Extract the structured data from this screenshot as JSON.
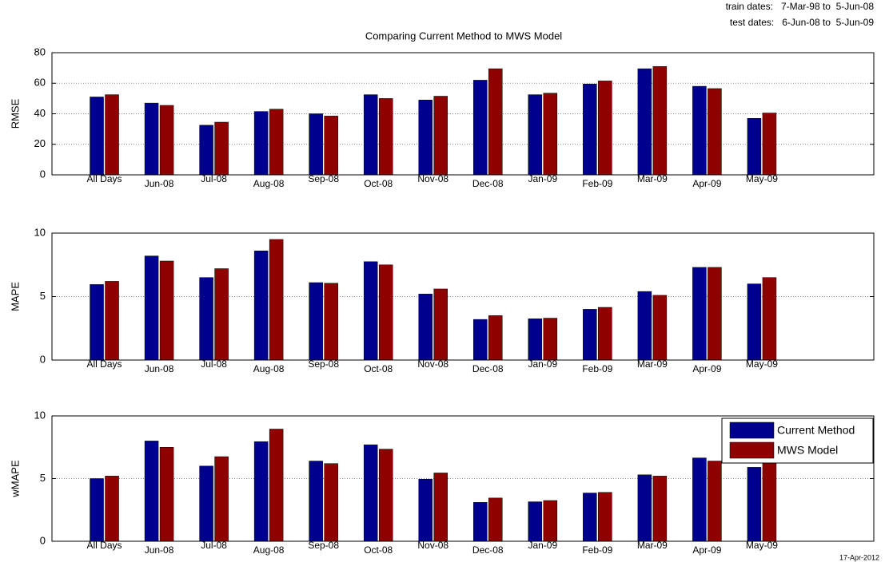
{
  "header": {
    "train_dates": "train dates:   7-Mar-98 to  5-Jun-08",
    "test_dates": "test dates:   6-Jun-08 to  5-Jun-09"
  },
  "footer": {
    "date": "17-Apr-2012"
  },
  "chart_data": [
    {
      "type": "bar",
      "title": "Comparing Current Method to MWS Model",
      "ylabel": "RMSE",
      "categories": [
        "All Days",
        "Jun-08",
        "Jul-08",
        "Aug-08",
        "Sep-08",
        "Oct-08",
        "Nov-08",
        "Dec-08",
        "Jan-09",
        "Feb-09",
        "Mar-09",
        "Apr-09",
        "May-09"
      ],
      "series": [
        {
          "name": "Current Method",
          "color": "#00008f",
          "values": [
            51,
            47,
            32.5,
            41.5,
            40,
            52.5,
            49,
            62,
            52.5,
            59.5,
            69.5,
            58,
            37
          ]
        },
        {
          "name": "MWS Model",
          "color": "#8f0000",
          "values": [
            52.5,
            45.5,
            34.5,
            43,
            38.5,
            50,
            51.5,
            69.5,
            53.5,
            61.5,
            71,
            56.5,
            40.5
          ]
        }
      ],
      "ylim": [
        0,
        80
      ],
      "yticks": [
        0,
        20,
        40,
        60,
        80
      ],
      "grid": true
    },
    {
      "type": "bar",
      "ylabel": "MAPE",
      "categories": [
        "All Days",
        "Jun-08",
        "Jul-08",
        "Aug-08",
        "Sep-08",
        "Oct-08",
        "Nov-08",
        "Dec-08",
        "Jan-09",
        "Feb-09",
        "Mar-09",
        "Apr-09",
        "May-09"
      ],
      "series": [
        {
          "name": "Current Method",
          "color": "#00008f",
          "values": [
            5.95,
            8.2,
            6.5,
            8.6,
            6.1,
            7.75,
            5.2,
            3.2,
            3.25,
            4.0,
            5.4,
            7.3,
            6.0
          ]
        },
        {
          "name": "MWS Model",
          "color": "#8f0000",
          "values": [
            6.2,
            7.8,
            7.2,
            9.5,
            6.05,
            7.5,
            5.6,
            3.5,
            3.3,
            4.15,
            5.1,
            7.3,
            6.5
          ]
        }
      ],
      "ylim": [
        0,
        10
      ],
      "yticks": [
        0,
        5,
        10
      ],
      "grid": true
    },
    {
      "type": "bar",
      "ylabel": "wMAPE",
      "categories": [
        "All Days",
        "Jun-08",
        "Jul-08",
        "Aug-08",
        "Sep-08",
        "Oct-08",
        "Nov-08",
        "Dec-08",
        "Jan-09",
        "Feb-09",
        "Mar-09",
        "Apr-09",
        "May-09"
      ],
      "series": [
        {
          "name": "Current Method",
          "color": "#00008f",
          "values": [
            5.0,
            8.0,
            6.0,
            7.95,
            6.4,
            7.7,
            4.95,
            3.1,
            3.15,
            3.85,
            5.3,
            6.65,
            5.9
          ]
        },
        {
          "name": "MWS Model",
          "color": "#8f0000",
          "values": [
            5.2,
            7.5,
            6.75,
            8.95,
            6.2,
            7.35,
            5.45,
            3.45,
            3.25,
            3.9,
            5.2,
            6.4,
            6.4
          ]
        }
      ],
      "ylim": [
        0,
        10
      ],
      "yticks": [
        0,
        5,
        10
      ],
      "grid": true,
      "legend": "upper right"
    }
  ]
}
